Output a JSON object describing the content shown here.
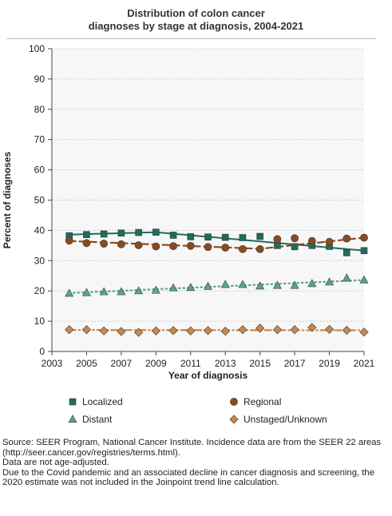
{
  "chart_data": {
    "type": "line",
    "title_lines": [
      "Distribution of colon cancer",
      "diagnoses by stage at diagnosis, 2004-2021"
    ],
    "xlabel": "Year of diagnosis",
    "ylabel": "Percent of diagnoses",
    "xlim": [
      2003,
      2021
    ],
    "ylim": [
      0,
      100
    ],
    "x_ticks": [
      2003,
      2005,
      2007,
      2009,
      2011,
      2013,
      2015,
      2017,
      2019,
      2021
    ],
    "y_ticks": [
      0,
      10,
      20,
      30,
      40,
      50,
      60,
      70,
      80,
      90,
      100
    ],
    "grid": "horizontal dotted",
    "legend_position": "bottom",
    "x": [
      2004,
      2005,
      2006,
      2007,
      2008,
      2009,
      2010,
      2011,
      2012,
      2013,
      2014,
      2015,
      2016,
      2017,
      2018,
      2019,
      2020,
      2021
    ],
    "series": [
      {
        "name": "Localized",
        "marker": "square",
        "color": "#1f6b5e",
        "trend_style": "solid",
        "values": [
          38.2,
          38.6,
          38.8,
          39.1,
          39.3,
          39.4,
          38.4,
          37.9,
          37.8,
          37.7,
          37.6,
          38.0,
          35.0,
          34.6,
          35.0,
          34.7,
          32.6,
          33.3
        ],
        "trend": [
          [
            2004,
            38.6
          ],
          [
            2009,
            39.4
          ],
          [
            2021,
            33.3
          ]
        ]
      },
      {
        "name": "Regional",
        "marker": "circle",
        "color": "#8b4a1e",
        "trend_style": "dashed",
        "values": [
          36.6,
          35.8,
          35.6,
          35.4,
          35.1,
          34.7,
          34.8,
          34.9,
          34.5,
          34.3,
          33.8,
          33.8,
          37.1,
          37.4,
          36.5,
          36.2,
          37.3,
          37.6
        ],
        "trend": [
          [
            2004,
            36.5
          ],
          [
            2015,
            33.9
          ],
          [
            2021,
            37.6
          ]
        ]
      },
      {
        "name": "Distant",
        "marker": "triangle",
        "color": "#5aa19a",
        "trend_style": "dotted",
        "values": [
          19.2,
          19.4,
          19.7,
          19.7,
          20.0,
          20.2,
          21.0,
          21.1,
          21.5,
          22.1,
          22.1,
          21.6,
          21.8,
          21.8,
          22.4,
          22.9,
          24.2,
          23.6
        ],
        "trend": [
          [
            2004,
            19.3
          ],
          [
            2021,
            23.6
          ]
        ]
      },
      {
        "name": "Unstaged/Unknown",
        "marker": "diamond",
        "color": "#c8874c",
        "trend_style": "dashdot",
        "values": [
          7.2,
          7.2,
          6.8,
          6.6,
          6.3,
          6.8,
          6.9,
          6.8,
          6.9,
          6.7,
          7.2,
          7.7,
          7.2,
          7.2,
          7.9,
          7.3,
          7.0,
          6.4
        ],
        "trend": [
          [
            2004,
            7.1
          ],
          [
            2021,
            7.0
          ]
        ]
      }
    ]
  },
  "source_lines": [
    "Source: SEER Program, National Cancer Institute. Incidence data are from the SEER 22 areas (http://seer.cancer.gov/registries/terms.html).",
    "Data are not age-adjusted.",
    "Due to the Covid pandemic and an associated decline in cancer diagnosis and screening, the 2020 estimate was not included in the Joinpoint trend line calculation."
  ]
}
